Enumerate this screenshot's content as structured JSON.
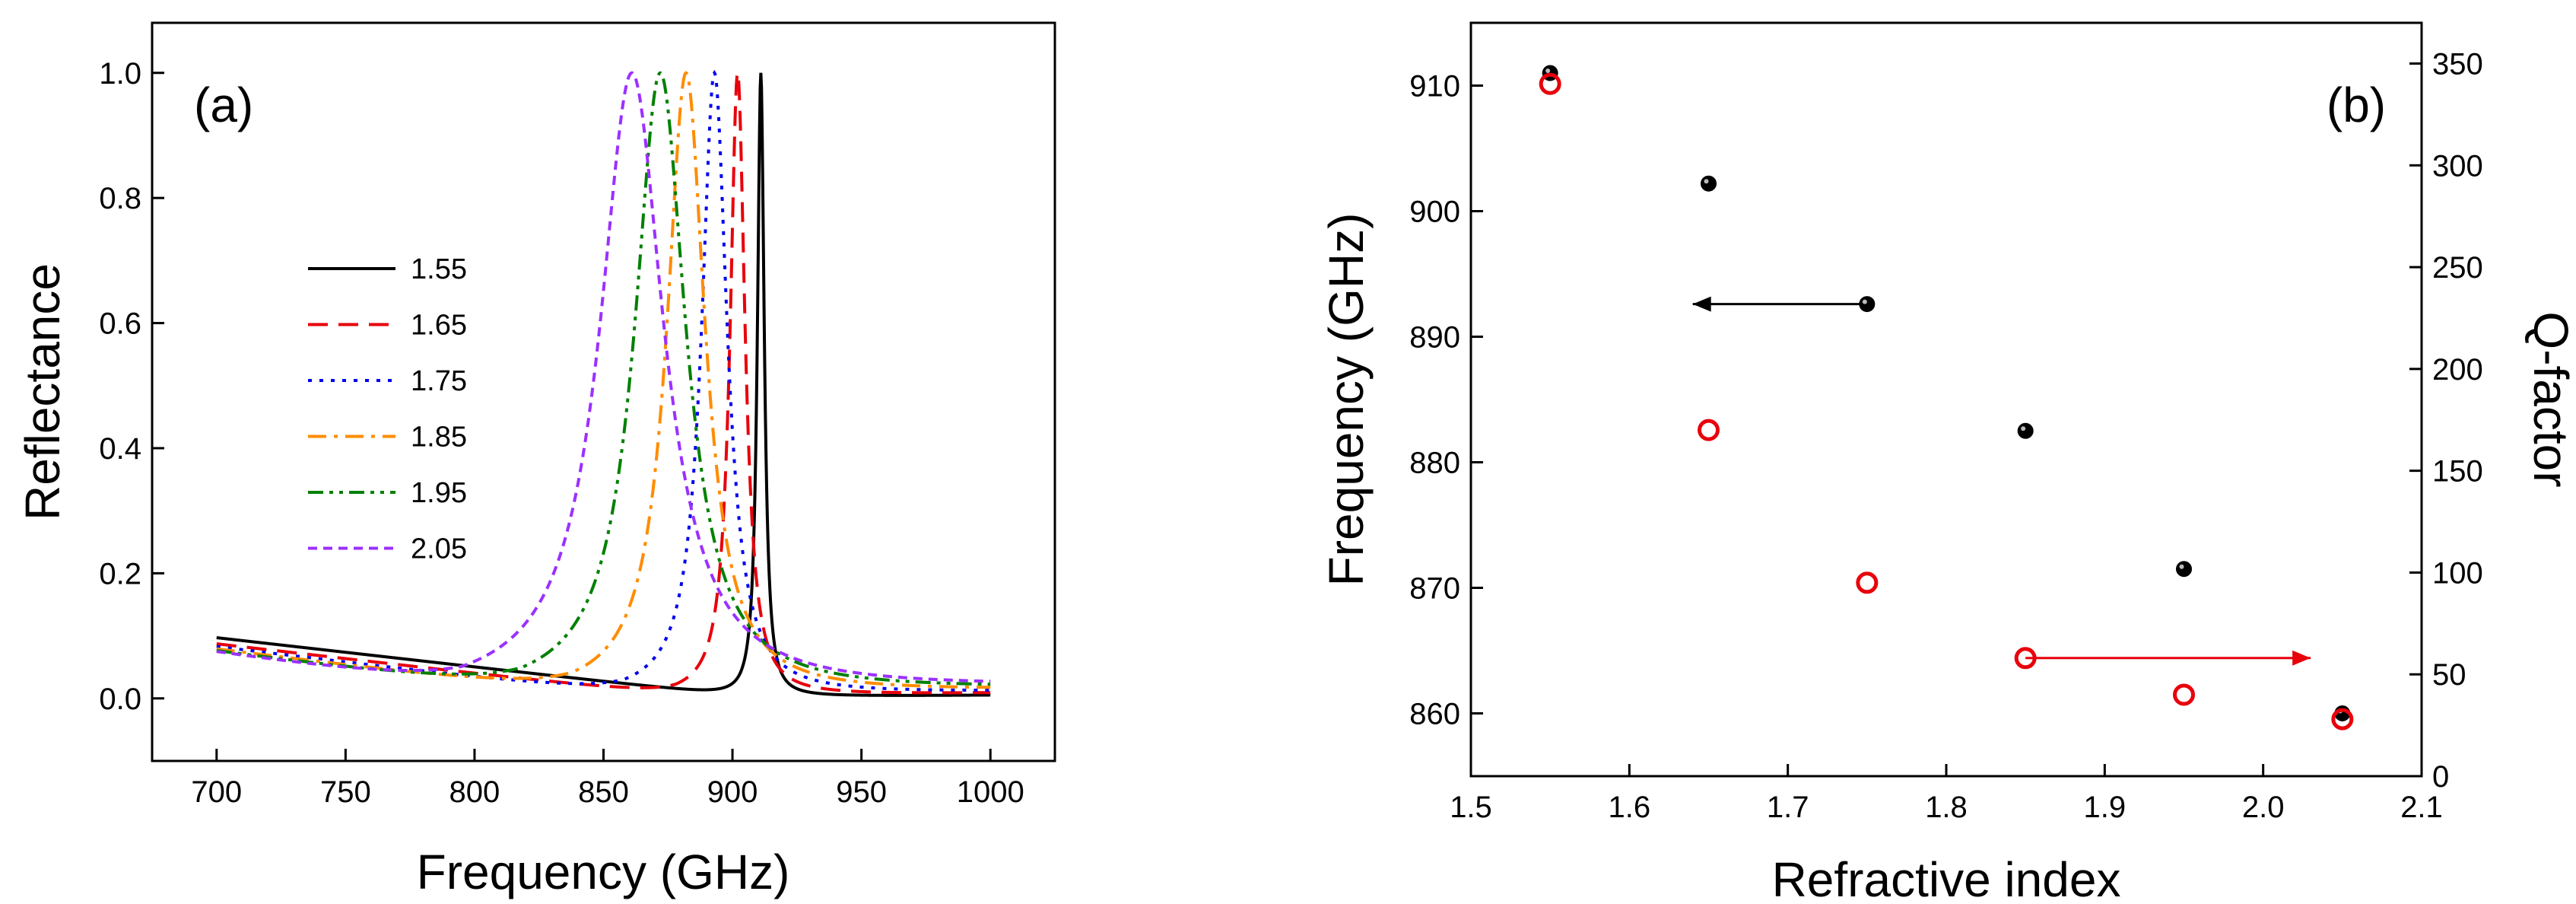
{
  "chart_data": [
    {
      "type": "line",
      "panel_label": "(a)",
      "xlabel": "Frequency (GHz)",
      "ylabel": "Reflectance",
      "xlim": [
        675,
        1025
      ],
      "ylim": [
        -0.1,
        1.08
      ],
      "xticks": [
        700,
        750,
        800,
        850,
        900,
        950,
        1000
      ],
      "xtick_labels": [
        "700",
        "750",
        "800",
        "850",
        "900",
        "950",
        "1000"
      ],
      "yticks": [
        0.0,
        0.2,
        0.4,
        0.6,
        0.8,
        1.0
      ],
      "ytick_labels": [
        "0.0",
        "0.2",
        "0.4",
        "0.6",
        "0.8",
        "1.0"
      ],
      "legend_position": "center-left",
      "series": [
        {
          "name": "1.55",
          "color": "#000000",
          "dash": "solid",
          "f0": 911,
          "gamma": 1.6,
          "base_start": 0.095,
          "base_end": 0.005,
          "dip": 903
        },
        {
          "name": "1.65",
          "color": "#e8000b",
          "dash": "long-dash",
          "f0": 902,
          "gamma": 3.5,
          "base_start": 0.085,
          "base_end": 0.008,
          "dip": 878
        },
        {
          "name": "1.75",
          "color": "#0000ee",
          "dash": "dot",
          "f0": 893,
          "gamma": 6,
          "base_start": 0.08,
          "base_end": 0.01,
          "dip": 858
        },
        {
          "name": "1.85",
          "color": "#ff8c00",
          "dash": "dash-dot",
          "f0": 882,
          "gamma": 9,
          "base_start": 0.075,
          "base_end": 0.012,
          "dip": 838
        },
        {
          "name": "1.95",
          "color": "#008000",
          "dash": "dash-dot-dot",
          "f0": 872,
          "gamma": 12,
          "base_start": 0.07,
          "base_end": 0.014,
          "dip": 818
        },
        {
          "name": "2.05",
          "color": "#9b30ff",
          "dash": "short-dash",
          "f0": 861,
          "gamma": 15,
          "base_start": 0.065,
          "base_end": 0.016,
          "dip": 795
        }
      ]
    },
    {
      "type": "scatter",
      "panel_label": "(b)",
      "xlabel": "Refractive index",
      "ylabel": "Frequency (GHz)",
      "y2label": "Q-factor",
      "xlim": [
        1.5,
        2.1
      ],
      "ylim": [
        855,
        915
      ],
      "y2lim": [
        0,
        370
      ],
      "xticks": [
        1.5,
        1.6,
        1.7,
        1.8,
        1.9,
        2.0,
        2.1
      ],
      "xtick_labels": [
        "1.5",
        "1.6",
        "1.7",
        "1.8",
        "1.9",
        "2.0",
        "2.1"
      ],
      "yticks": [
        860,
        870,
        880,
        890,
        900,
        910
      ],
      "ytick_labels": [
        "860",
        "870",
        "880",
        "890",
        "900",
        "910"
      ],
      "y2ticks": [
        0,
        50,
        100,
        150,
        200,
        250,
        300,
        350
      ],
      "y2tick_labels": [
        "0",
        "50",
        "100",
        "150",
        "200",
        "250",
        "300",
        "350"
      ],
      "series": [
        {
          "name": "Frequency",
          "axis": "left",
          "marker": "filled-circle",
          "color": "#000000",
          "x": [
            1.55,
            1.65,
            1.75,
            1.85,
            1.95,
            2.05
          ],
          "y": [
            911,
            902.2,
            892.6,
            882.5,
            871.5,
            860
          ]
        },
        {
          "name": "Q-factor",
          "axis": "right",
          "marker": "open-circle",
          "color": "#e8000b",
          "x": [
            1.55,
            1.65,
            1.75,
            1.85,
            1.95,
            2.05
          ],
          "y": [
            340,
            170,
            95,
            58,
            40,
            28
          ]
        }
      ],
      "annotations": [
        {
          "kind": "arrow-left",
          "color": "#000000",
          "from": [
            1.75,
            892.6
          ],
          "to": [
            1.64,
            892.6
          ]
        },
        {
          "kind": "arrow-right",
          "color": "#e8000b",
          "from": [
            1.85,
            58
          ],
          "to": [
            2.03,
            58
          ],
          "axis": "right"
        }
      ]
    }
  ]
}
